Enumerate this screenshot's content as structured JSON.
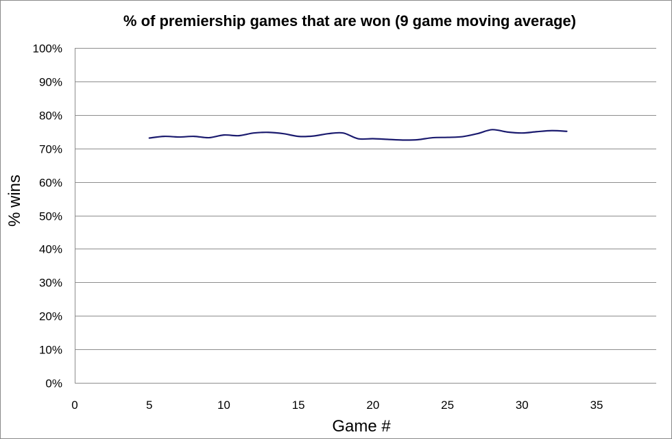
{
  "chart_data": {
    "type": "line",
    "title": "% of premiership games that are won (9 game moving average)",
    "xlabel": "Game #",
    "ylabel": "% wins",
    "xlim": [
      0,
      39
    ],
    "ylim": [
      0,
      100
    ],
    "x_ticks": [
      0,
      5,
      10,
      15,
      20,
      25,
      30,
      35
    ],
    "y_ticks": [
      0,
      10,
      20,
      30,
      40,
      50,
      60,
      70,
      80,
      90,
      100
    ],
    "y_tick_labels": [
      "0%",
      "10%",
      "20%",
      "30%",
      "40%",
      "50%",
      "60%",
      "70%",
      "80%",
      "90%",
      "100%"
    ],
    "grid": "horizontal",
    "legend": "none",
    "series": [
      {
        "color": "#1a1a6e",
        "x": [
          5,
          6,
          7,
          8,
          9,
          10,
          11,
          12,
          13,
          14,
          15,
          16,
          17,
          18,
          19,
          20,
          21,
          22,
          23,
          24,
          25,
          26,
          27,
          28,
          29,
          30,
          31,
          32,
          33
        ],
        "y": [
          73.1,
          73.6,
          73.4,
          73.6,
          73.2,
          74.0,
          73.8,
          74.6,
          74.8,
          74.4,
          73.6,
          73.7,
          74.4,
          74.6,
          72.9,
          72.9,
          72.7,
          72.5,
          72.6,
          73.2,
          73.3,
          73.5,
          74.4,
          75.6,
          74.9,
          74.6,
          75.0,
          75.3,
          75.1
        ]
      }
    ]
  }
}
